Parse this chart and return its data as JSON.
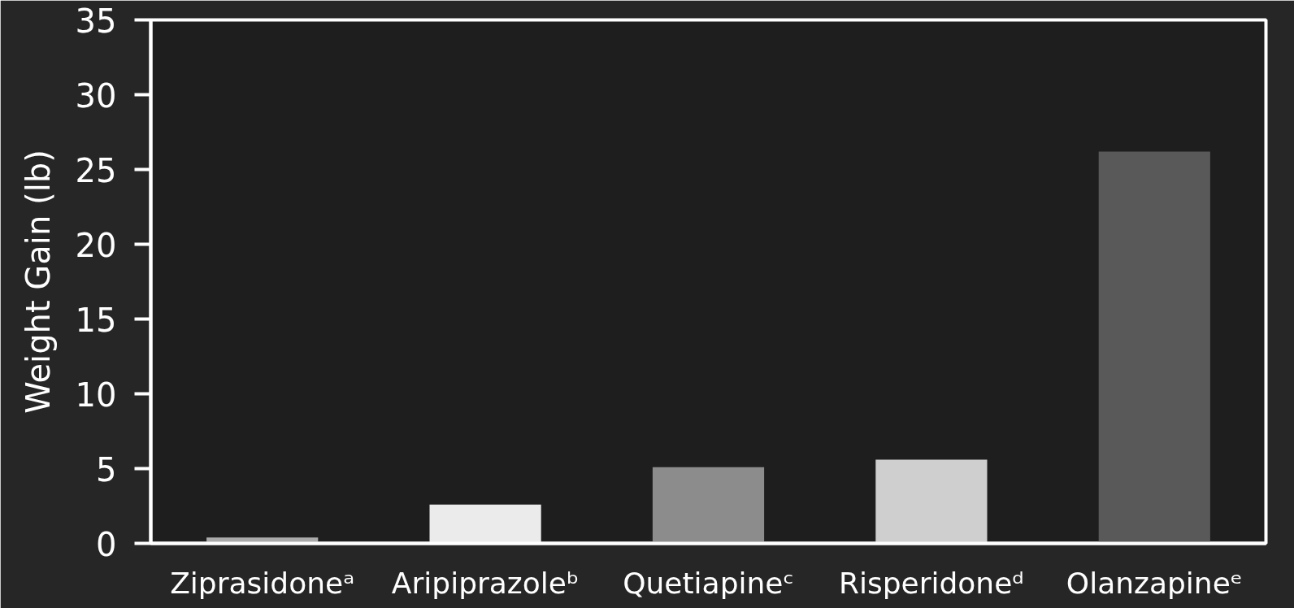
{
  "chart_data": {
    "type": "bar",
    "ylabel": "Weight Gain (lb)",
    "categories": [
      "Ziprasidoneᵃ",
      "Aripiprazoleᵇ",
      "Quetiapineᶜ",
      "Risperidoneᵈ",
      "Olanzapineᵉ"
    ],
    "values": [
      0.4,
      2.6,
      5.1,
      5.6,
      26.2
    ],
    "colors": [
      "#aaaaaa",
      "#ebebeb",
      "#8c8c8c",
      "#cfcfcf",
      "#595959"
    ],
    "ylim": [
      0,
      35
    ],
    "yticks": [
      0,
      5,
      10,
      15,
      20,
      25,
      30,
      35
    ],
    "grid": false
  }
}
